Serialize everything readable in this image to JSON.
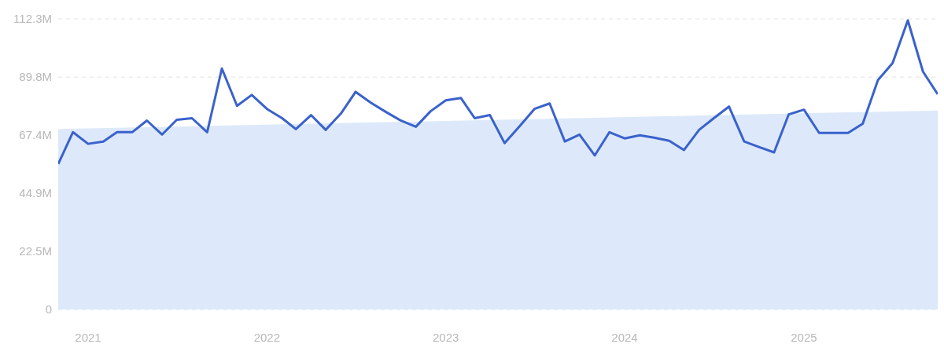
{
  "chart_data": {
    "type": "line",
    "x": [
      "2020-11",
      "2020-12",
      "2021-01",
      "2021-02",
      "2021-03",
      "2021-04",
      "2021-05",
      "2021-06",
      "2021-07",
      "2021-08",
      "2021-09",
      "2021-10",
      "2021-11",
      "2021-12",
      "2022-01",
      "2022-02",
      "2022-03",
      "2022-04",
      "2022-05",
      "2022-06",
      "2022-07",
      "2022-08",
      "2022-09",
      "2022-10",
      "2022-11",
      "2022-12",
      "2023-01",
      "2023-02",
      "2023-03",
      "2023-04",
      "2023-05",
      "2023-06",
      "2023-07",
      "2023-08",
      "2023-09",
      "2023-10",
      "2023-11",
      "2023-12",
      "2024-01",
      "2024-02",
      "2024-03",
      "2024-04",
      "2024-05",
      "2024-06",
      "2024-07",
      "2024-08",
      "2024-09",
      "2024-10",
      "2024-11",
      "2024-12",
      "2025-01",
      "2025-02",
      "2025-03",
      "2025-04",
      "2025-05",
      "2025-06",
      "2025-07",
      "2025-08",
      "2025-09",
      "2025-10"
    ],
    "series": [
      {
        "type": "area",
        "color": "#dde9fb",
        "x": [
          "2020-11",
          "2025-10"
        ],
        "values": [
          69.7,
          76.9
        ]
      },
      {
        "color": "#3a62cc",
        "values": [
          56.2,
          68.5,
          64.0,
          64.9,
          68.5,
          68.5,
          73.0,
          67.6,
          73.3,
          73.9,
          68.5,
          93.1,
          78.7,
          82.9,
          77.5,
          73.9,
          69.7,
          75.1,
          69.4,
          75.7,
          84.1,
          79.9,
          76.3,
          73.0,
          70.6,
          76.6,
          80.8,
          81.7,
          73.9,
          75.1,
          64.3,
          70.9,
          77.5,
          79.6,
          64.9,
          67.6,
          59.5,
          68.5,
          66.1,
          67.3,
          66.4,
          65.2,
          61.6,
          69.4,
          73.9,
          78.4,
          64.9,
          62.8,
          60.7,
          75.4,
          77.2,
          68.2,
          68.2,
          68.2,
          71.8,
          88.6,
          95.2,
          111.7,
          91.9,
          83.2
        ]
      }
    ],
    "xlim": [
      "2020-11",
      "2025-10"
    ],
    "xticks": [
      "2021",
      "2022",
      "2023",
      "2024",
      "2025"
    ],
    "ylim": [
      0,
      112.3
    ],
    "yticks": [
      {
        "value": 0,
        "label": "0"
      },
      {
        "value": 22.5,
        "label": "22.5M"
      },
      {
        "value": 44.9,
        "label": "44.9M"
      },
      {
        "value": 67.4,
        "label": "67.4M"
      },
      {
        "value": 89.8,
        "label": "89.8M"
      },
      {
        "value": 112.3,
        "label": "112.3M"
      }
    ],
    "grid": "y",
    "marker": "none"
  }
}
